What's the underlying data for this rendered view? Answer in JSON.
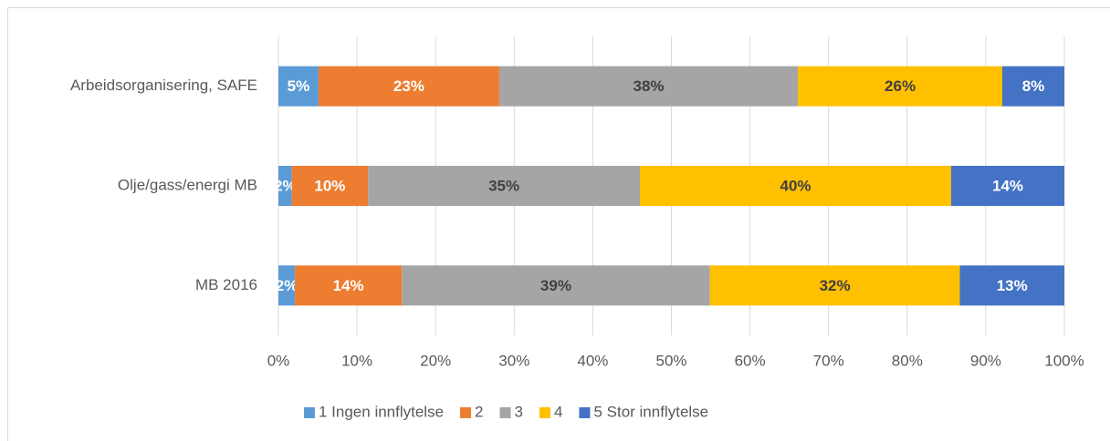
{
  "chart_data": {
    "type": "stacked-barh",
    "categories": [
      "Arbeidsorganisering, SAFE",
      "Olje/gass/energi MB",
      "MB 2016"
    ],
    "series": [
      {
        "name": "1 Ingen innflytelse",
        "color": "#5b9bd5",
        "label_color": "#ffffff",
        "values": [
          5.1,
          1.7,
          2.1
        ],
        "value_labels": [
          "5%",
          "2%",
          "2%"
        ]
      },
      {
        "name": "2",
        "color": "#ed7d31",
        "label_color": "#ffffff",
        "values": [
          23.0,
          9.7,
          13.6
        ],
        "value_labels": [
          "23%",
          "10%",
          "14%"
        ]
      },
      {
        "name": "3",
        "color": "#a5a5a5",
        "label_color": "#404040",
        "values": [
          38.0,
          34.6,
          39.2
        ],
        "value_labels": [
          "38%",
          "35%",
          "39%"
        ]
      },
      {
        "name": "4",
        "color": "#ffc000",
        "label_color": "#404040",
        "values": [
          26.0,
          39.6,
          31.8
        ],
        "value_labels": [
          "26%",
          "40%",
          "32%"
        ]
      },
      {
        "name": "5 Stor innflytelse",
        "color": "#4472c4",
        "label_color": "#ffffff",
        "values": [
          7.9,
          14.4,
          13.3
        ],
        "value_labels": [
          "8%",
          "14%",
          "13%"
        ]
      }
    ],
    "xlim": [
      0,
      100
    ],
    "xticks": [
      {
        "value": 0,
        "label": "0%"
      },
      {
        "value": 10,
        "label": "10%"
      },
      {
        "value": 20,
        "label": "20%"
      },
      {
        "value": 30,
        "label": "30%"
      },
      {
        "value": 40,
        "label": "40%"
      },
      {
        "value": 50,
        "label": "50%"
      },
      {
        "value": 60,
        "label": "60%"
      },
      {
        "value": 70,
        "label": "70%"
      },
      {
        "value": 80,
        "label": "80%"
      },
      {
        "value": 90,
        "label": "90%"
      },
      {
        "value": 100,
        "label": "100%"
      }
    ],
    "grid": true,
    "legend": "bottom"
  }
}
